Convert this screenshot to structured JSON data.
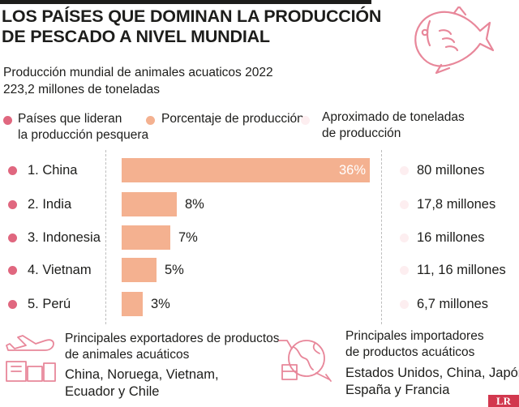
{
  "title_line1": "Los países que dominan la producción",
  "title_line2": "de pescado a nivel mundial",
  "subtitle_line1": "Producción mundial de animales acuaticos 2022",
  "subtitle_value": "223,2 millones",
  "subtitle_unit": " de toneladas",
  "legend": {
    "countries_l1": "Países que lideran",
    "countries_l2": "la producción pesquera",
    "percentage": "Porcentaje de producción",
    "tons_l1": "Aproximado de toneladas",
    "tons_l2": "de producción"
  },
  "colors": {
    "pink": "#e0677f",
    "salmon": "#f4b190",
    "light": "#fdeef0"
  },
  "chart_data": {
    "type": "bar",
    "orientation": "horizontal",
    "categories": [
      "1. China",
      "2. India",
      "3. Indonesia",
      "4. Vietnam",
      "5. Perú"
    ],
    "values": [
      36,
      8,
      7,
      5,
      3
    ],
    "value_labels": [
      "36%",
      "8%",
      "7%",
      "5%",
      "3%"
    ],
    "tons_labels": [
      "80 millones",
      "17,8 millones",
      "16 millones",
      "11, 16 millones",
      "6,7 millones"
    ],
    "xlim": [
      0,
      36
    ],
    "unit": "%"
  },
  "exporters": {
    "heading_l1": "Principales exportadores de productos",
    "heading_l2": "de animales acuáticos",
    "list_l1": "China, Noruega, Vietnam,",
    "list_l2": "Ecuador y Chile"
  },
  "importers": {
    "heading_l1": "Principales importadores",
    "heading_l2": "de productos acuáticos",
    "list_l1": "Estados Unidos, China, Japón,",
    "list_l2": "España y Francia"
  },
  "logo_text": "LR"
}
